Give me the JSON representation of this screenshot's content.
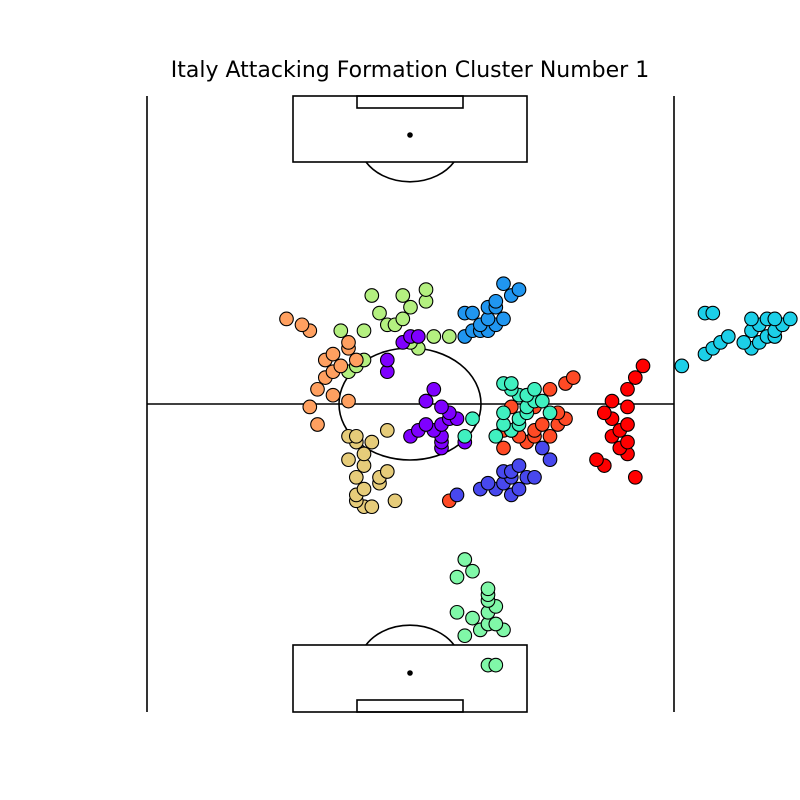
{
  "chart_data": {
    "type": "scatter",
    "title": "Italy Attacking Formation Cluster Number 1",
    "xlabel": "",
    "ylabel": "",
    "grid": false,
    "legend": "none",
    "pitch": {
      "length": 105,
      "width": 68,
      "orientation": "vertical"
    },
    "series": [
      {
        "color": "#ff0000",
        "points": [
          [
            40,
            63
          ],
          [
            42,
            59
          ],
          [
            43,
            58
          ],
          [
            44,
            62
          ],
          [
            45,
            61
          ],
          [
            46,
            62
          ],
          [
            47,
            60
          ],
          [
            48,
            61
          ],
          [
            49,
            62
          ],
          [
            50,
            60
          ],
          [
            51,
            59
          ],
          [
            52,
            62
          ],
          [
            53,
            60
          ],
          [
            55,
            62
          ],
          [
            57,
            63
          ],
          [
            59,
            64
          ]
        ]
      },
      {
        "color": "#ff4a25",
        "points": [
          [
            36,
            39
          ],
          [
            45,
            46
          ],
          [
            46,
            49
          ],
          [
            47,
            48
          ],
          [
            47,
            50
          ],
          [
            47,
            52
          ],
          [
            48,
            46
          ],
          [
            48,
            47
          ],
          [
            48,
            50
          ],
          [
            49,
            51
          ],
          [
            49,
            53
          ],
          [
            50,
            54
          ],
          [
            51,
            53
          ],
          [
            52,
            47
          ],
          [
            52,
            50
          ],
          [
            54,
            49
          ],
          [
            55,
            52
          ],
          [
            56,
            54
          ],
          [
            57,
            55
          ]
        ]
      },
      {
        "color": "#1ccfe8",
        "points": [
          [
            59,
            69
          ],
          [
            61,
            72
          ],
          [
            62,
            73
          ],
          [
            62,
            78
          ],
          [
            63,
            74
          ],
          [
            63,
            77
          ],
          [
            63,
            79
          ],
          [
            64,
            75
          ],
          [
            64,
            80
          ],
          [
            64,
            81
          ],
          [
            65,
            78
          ],
          [
            65,
            81
          ],
          [
            66,
            79
          ],
          [
            66,
            82
          ],
          [
            67,
            78
          ],
          [
            67,
            80
          ],
          [
            67,
            81
          ],
          [
            67,
            83
          ],
          [
            68,
            72
          ],
          [
            68,
            73
          ]
        ]
      },
      {
        "color": "#2096f0",
        "points": [
          [
            64,
            41
          ],
          [
            65,
            42
          ],
          [
            65,
            43
          ],
          [
            65,
            44
          ],
          [
            66,
            43
          ],
          [
            66,
            45
          ],
          [
            67,
            44
          ],
          [
            67,
            46
          ],
          [
            68,
            41
          ],
          [
            68,
            42
          ],
          [
            69,
            44
          ],
          [
            69,
            45
          ],
          [
            70,
            45
          ],
          [
            71,
            47
          ],
          [
            72,
            48
          ],
          [
            73,
            46
          ]
        ]
      },
      {
        "color": "#b4f080",
        "points": [
          [
            58,
            26
          ],
          [
            59,
            27
          ],
          [
            60,
            28
          ],
          [
            62,
            35
          ],
          [
            63,
            34
          ],
          [
            64,
            37
          ],
          [
            64,
            39
          ],
          [
            65,
            25
          ],
          [
            65,
            28
          ],
          [
            66,
            31
          ],
          [
            66,
            32
          ],
          [
            67,
            33
          ],
          [
            68,
            30
          ],
          [
            69,
            34
          ],
          [
            70,
            36
          ],
          [
            71,
            29
          ],
          [
            71,
            33
          ],
          [
            72,
            36
          ]
        ]
      },
      {
        "color": "#ffa060",
        "points": [
          [
            49,
            22
          ],
          [
            52,
            21
          ],
          [
            53,
            26
          ],
          [
            54,
            24
          ],
          [
            55,
            22
          ],
          [
            57,
            23
          ],
          [
            58,
            24
          ],
          [
            59,
            25
          ],
          [
            60,
            23
          ],
          [
            60,
            27
          ],
          [
            61,
            24
          ],
          [
            62,
            26
          ],
          [
            63,
            26
          ],
          [
            65,
            21
          ],
          [
            66,
            20
          ],
          [
            67,
            18
          ]
        ]
      },
      {
        "color": "#e6cc7a",
        "points": [
          [
            35,
            28
          ],
          [
            35,
            29
          ],
          [
            36,
            27
          ],
          [
            36,
            32
          ],
          [
            37,
            27
          ],
          [
            38,
            28
          ],
          [
            39,
            30
          ],
          [
            40,
            27
          ],
          [
            40,
            30
          ],
          [
            41,
            31
          ],
          [
            42,
            28
          ],
          [
            43,
            26
          ],
          [
            44,
            28
          ],
          [
            46,
            27
          ],
          [
            46,
            29
          ],
          [
            47,
            26
          ],
          [
            47,
            27
          ],
          [
            48,
            31
          ],
          [
            53,
            36
          ]
        ]
      },
      {
        "color": "#7f00ff",
        "points": [
          [
            45,
            38
          ],
          [
            46,
            38
          ],
          [
            46,
            41
          ],
          [
            47,
            34
          ],
          [
            47,
            38
          ],
          [
            48,
            35
          ],
          [
            48,
            37
          ],
          [
            49,
            36
          ],
          [
            49,
            38
          ],
          [
            50,
            39
          ],
          [
            50,
            40
          ],
          [
            51,
            39
          ],
          [
            52,
            38
          ],
          [
            53,
            36
          ],
          [
            55,
            37
          ],
          [
            58,
            31
          ],
          [
            60,
            31
          ],
          [
            63,
            33
          ],
          [
            64,
            34
          ],
          [
            64,
            35
          ]
        ]
      },
      {
        "color": "#4848ee",
        "points": [
          [
            37,
            40
          ],
          [
            37,
            47
          ],
          [
            38,
            43
          ],
          [
            38,
            45
          ],
          [
            38,
            48
          ],
          [
            39,
            44
          ],
          [
            39,
            46
          ],
          [
            40,
            47
          ],
          [
            40,
            49
          ],
          [
            40,
            50
          ],
          [
            41,
            46
          ],
          [
            41,
            47
          ],
          [
            42,
            48
          ],
          [
            43,
            52
          ],
          [
            45,
            51
          ]
        ]
      },
      {
        "color": "#40f0c0",
        "points": [
          [
            47,
            41
          ],
          [
            47,
            45
          ],
          [
            48,
            47
          ],
          [
            49,
            46
          ],
          [
            49,
            48
          ],
          [
            50,
            42
          ],
          [
            50,
            48
          ],
          [
            51,
            46
          ],
          [
            51,
            49
          ],
          [
            51,
            52
          ],
          [
            52,
            49
          ],
          [
            53,
            50
          ],
          [
            53,
            51
          ],
          [
            54,
            48
          ],
          [
            54,
            49
          ],
          [
            55,
            47
          ],
          [
            55,
            50
          ],
          [
            56,
            46
          ],
          [
            56,
            47
          ]
        ]
      },
      {
        "color": "#80f8a8",
        "points": [
          [
            8,
            44
          ],
          [
            8,
            45
          ],
          [
            13,
            41
          ],
          [
            14,
            43
          ],
          [
            14,
            46
          ],
          [
            15,
            44
          ],
          [
            15,
            45
          ],
          [
            16,
            42
          ],
          [
            17,
            40
          ],
          [
            17,
            44
          ],
          [
            18,
            45
          ],
          [
            19,
            44
          ],
          [
            20,
            44
          ],
          [
            21,
            44
          ],
          [
            23,
            40
          ],
          [
            24,
            42
          ],
          [
            26,
            41
          ]
        ]
      }
    ]
  }
}
